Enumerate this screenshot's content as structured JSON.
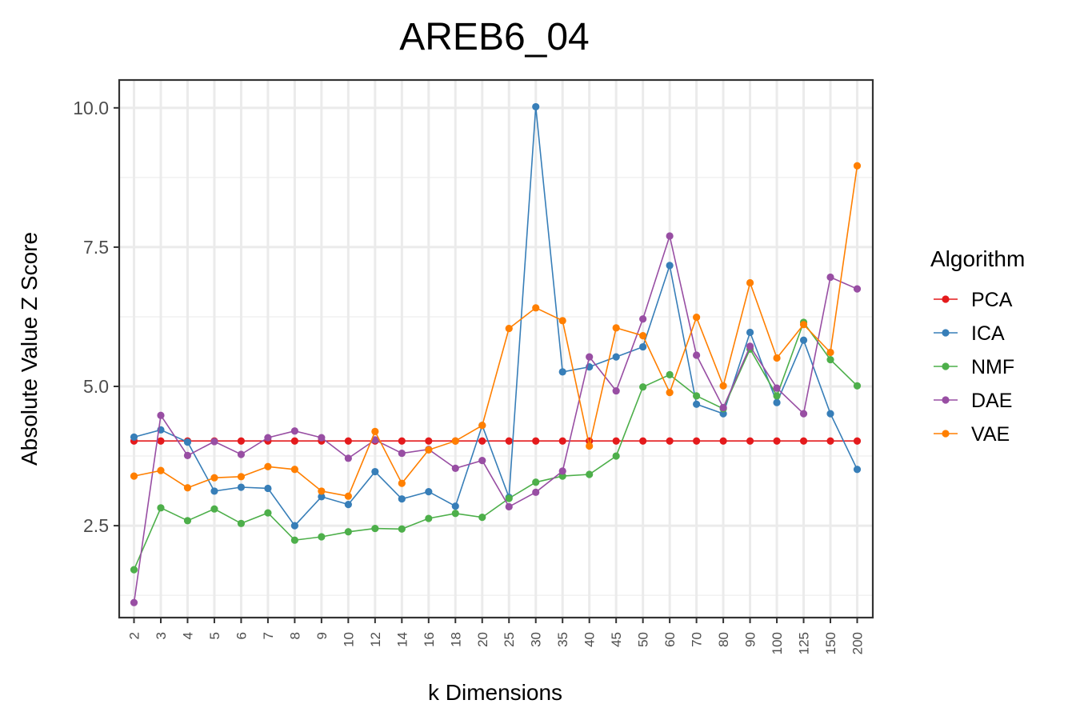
{
  "chart_data": {
    "type": "line",
    "title": "AREB6_04",
    "xlabel": "k Dimensions",
    "ylabel": "Absolute Value Z Score",
    "categories": [
      "2",
      "3",
      "4",
      "5",
      "6",
      "7",
      "8",
      "9",
      "10",
      "12",
      "14",
      "16",
      "18",
      "20",
      "25",
      "30",
      "35",
      "40",
      "45",
      "50",
      "60",
      "70",
      "80",
      "90",
      "100",
      "125",
      "150",
      "200"
    ],
    "yticks": [
      2.5,
      5.0,
      7.5,
      10.0
    ],
    "ytick_labels": [
      "2.5",
      "5.0",
      "7.5",
      "10.0"
    ],
    "ylim": [
      0.85,
      10.5
    ],
    "grid": true,
    "legend": {
      "title": "Algorithm",
      "position": "right"
    },
    "series": [
      {
        "name": "PCA",
        "color": "#e41a1c",
        "values": [
          4.02,
          4.02,
          4.02,
          4.02,
          4.02,
          4.02,
          4.02,
          4.02,
          4.02,
          4.02,
          4.02,
          4.02,
          4.02,
          4.02,
          4.02,
          4.02,
          4.02,
          4.02,
          4.02,
          4.02,
          4.02,
          4.02,
          4.02,
          4.02,
          4.02,
          4.02,
          4.02,
          4.02
        ]
      },
      {
        "name": "ICA",
        "color": "#377eb8",
        "values": [
          4.09,
          4.22,
          4.0,
          3.12,
          3.19,
          3.17,
          2.5,
          3.02,
          2.88,
          3.47,
          2.98,
          3.11,
          2.85,
          4.3,
          3.01,
          10.02,
          5.26,
          5.35,
          5.53,
          5.71,
          7.17,
          4.68,
          4.51,
          5.97,
          4.71,
          5.83,
          4.51,
          3.51
        ]
      },
      {
        "name": "NMF",
        "color": "#4daf4a",
        "values": [
          1.71,
          2.82,
          2.59,
          2.8,
          2.54,
          2.73,
          2.24,
          2.3,
          2.39,
          2.45,
          2.44,
          2.63,
          2.72,
          2.65,
          2.99,
          3.28,
          3.39,
          3.42,
          3.75,
          4.99,
          5.21,
          4.83,
          4.6,
          5.67,
          4.83,
          6.15,
          5.48,
          5.01
        ]
      },
      {
        "name": "DAE",
        "color": "#984ea3",
        "values": [
          1.12,
          4.48,
          3.76,
          4.01,
          3.78,
          4.08,
          4.2,
          4.08,
          3.71,
          4.04,
          3.8,
          3.87,
          3.53,
          3.67,
          2.84,
          3.1,
          3.48,
          5.53,
          4.92,
          6.21,
          7.7,
          5.56,
          4.62,
          5.72,
          4.97,
          4.51,
          6.96,
          6.75
        ]
      },
      {
        "name": "VAE",
        "color": "#ff7f00",
        "values": [
          3.39,
          3.49,
          3.18,
          3.36,
          3.38,
          3.56,
          3.51,
          3.12,
          3.03,
          4.19,
          3.26,
          3.86,
          4.02,
          4.3,
          6.04,
          6.41,
          6.18,
          3.93,
          6.05,
          5.91,
          4.89,
          6.24,
          5.01,
          6.86,
          5.51,
          6.11,
          5.61,
          8.96
        ]
      }
    ]
  }
}
